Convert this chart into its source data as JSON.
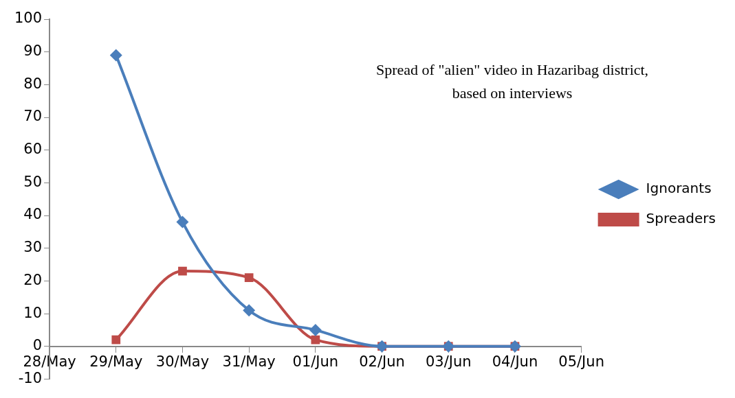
{
  "chart_data": {
    "type": "line",
    "title": "Spread of \"alien\" video in Hazaribag district, based on interviews",
    "x": [
      "--05-29",
      "--05-30",
      "--05-31",
      "--06-01",
      "--06-02",
      "--06-03",
      "--06-04"
    ],
    "series": [
      {
        "name": "Ignorants",
        "color": "#4a7ebb",
        "marker": "diamond",
        "values": [
          89,
          38,
          11,
          5,
          0,
          0,
          0
        ]
      },
      {
        "name": "Spreaders",
        "color": "#be4b48",
        "marker": "square",
        "values": [
          2,
          23,
          21,
          2,
          0,
          0,
          0
        ]
      }
    ],
    "xlim": [
      "--05-28",
      "--06-05"
    ],
    "xticks": [
      {
        "value": "--05-28",
        "label": "28/May"
      },
      {
        "value": "--05-29",
        "label": "29/May"
      },
      {
        "value": "--05-30",
        "label": "30/May"
      },
      {
        "value": "--05-31",
        "label": "31/May"
      },
      {
        "value": "--06-01",
        "label": "01/Jun"
      },
      {
        "value": "--06-02",
        "label": "02/Jun"
      },
      {
        "value": "--06-03",
        "label": "03/Jun"
      },
      {
        "value": "--06-04",
        "label": "04/Jun"
      },
      {
        "value": "--06-05",
        "label": "05/Jun"
      }
    ],
    "ylim": [
      -10,
      100
    ],
    "yticks": [
      -10,
      0,
      10,
      20,
      30,
      40,
      50,
      60,
      70,
      80,
      90,
      100
    ],
    "grid": false,
    "legend": "right"
  }
}
